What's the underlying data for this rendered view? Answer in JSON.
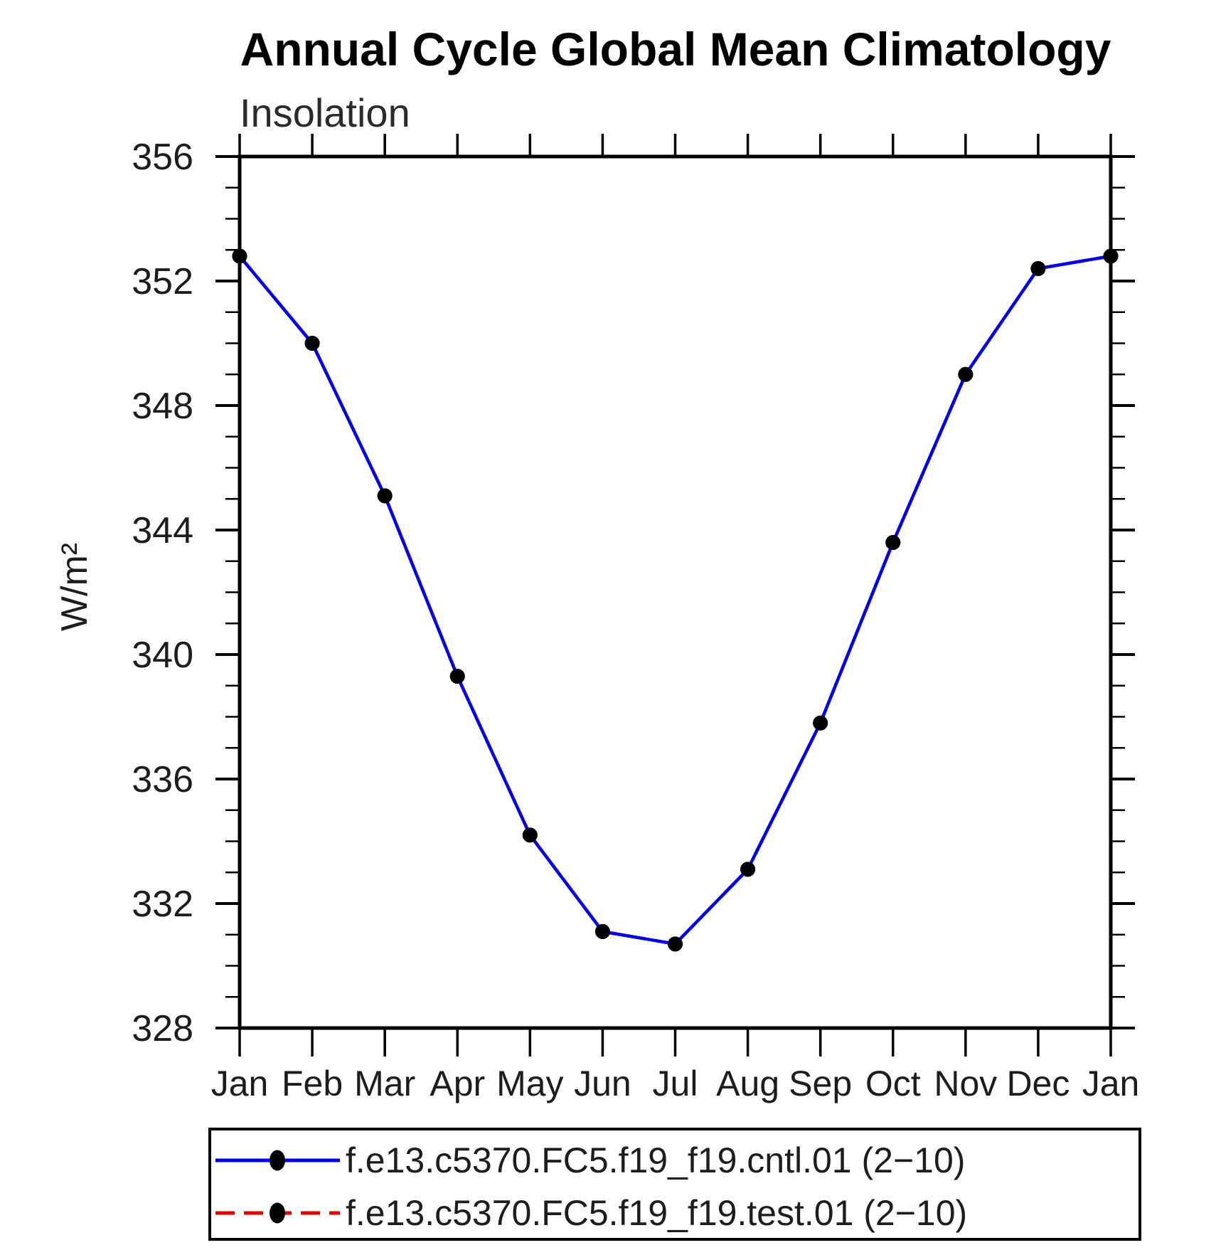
{
  "title": "Annual Cycle Global Mean Climatology",
  "subtitle": "Insolation",
  "y_axis_title": "W/m²",
  "chart_data": {
    "type": "line",
    "categories": [
      "Jan",
      "Feb",
      "Mar",
      "Apr",
      "May",
      "Jun",
      "Jul",
      "Aug",
      "Sep",
      "Oct",
      "Nov",
      "Dec",
      "Jan"
    ],
    "series": [
      {
        "name": "cntl",
        "label": "f.e13.c5370.FC5.f19_f19.cntl.01 (2−10)",
        "color": "#0000ee",
        "line_style": "solid",
        "marker": "filled-circle",
        "marker_color": "#000000",
        "visible_in_plot": true,
        "values": [
          352.8,
          350.0,
          345.1,
          339.3,
          334.2,
          331.1,
          330.7,
          333.1,
          337.8,
          343.6,
          349.0,
          352.4,
          352.8
        ]
      },
      {
        "name": "test",
        "label": "f.e13.c5370.FC5.f19_f19.test.01 (2−10)",
        "color": "#ee0000",
        "line_style": "dashed",
        "marker": "filled-circle",
        "marker_color": "#000000",
        "visible_in_plot": false,
        "values": [
          352.8,
          350.0,
          345.1,
          339.3,
          334.2,
          331.1,
          330.7,
          333.1,
          337.8,
          343.6,
          349.0,
          352.4,
          352.8
        ]
      }
    ],
    "ylim": [
      328,
      356
    ],
    "yticks": [
      328,
      332,
      336,
      340,
      344,
      348,
      352,
      356
    ],
    "y_minor_step": 1,
    "xlabel": "",
    "ylabel": "W/m²",
    "grid": false,
    "legend_position": "bottom"
  }
}
